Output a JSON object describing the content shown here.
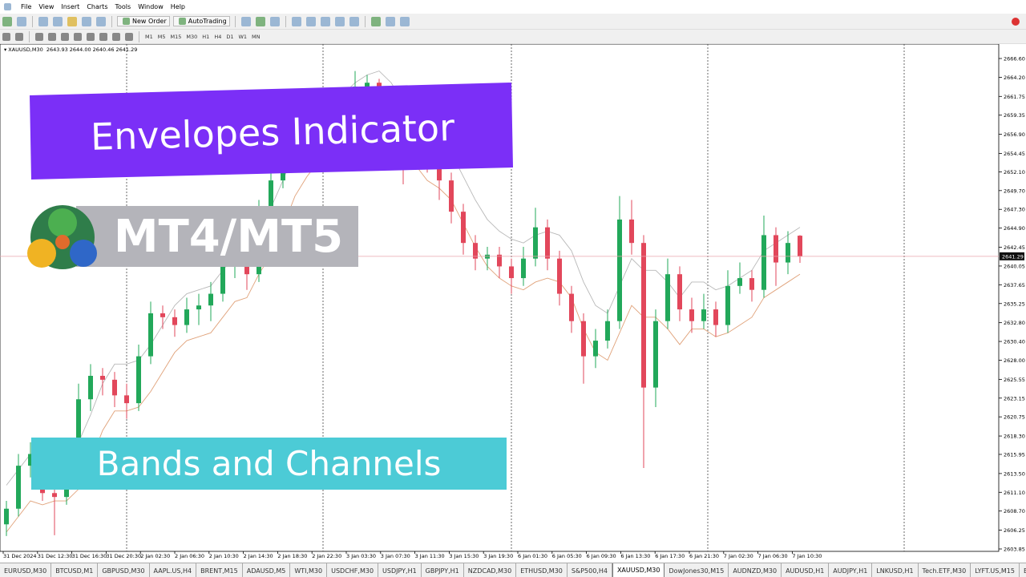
{
  "menu": [
    "File",
    "View",
    "Insert",
    "Charts",
    "Tools",
    "Window",
    "Help"
  ],
  "toolbar": {
    "new_order": "New Order",
    "autotrading": "AutoTrading",
    "timeframes": [
      "M1",
      "M5",
      "M15",
      "M30",
      "H1",
      "H4",
      "D1",
      "W1",
      "MN"
    ]
  },
  "chart": {
    "type": "candlestick",
    "symbol": "XAUUSD,M30",
    "ohlc_text": [
      "2643.93",
      "2644.00",
      "2640.46",
      "2641.29"
    ],
    "candles": [
      [
        2607.0,
        2610.0,
        2605.5,
        2609.0
      ],
      [
        2609.0,
        2616.0,
        2608.0,
        2614.5
      ],
      [
        2614.5,
        2617.5,
        2613.0,
        2616.0
      ],
      [
        2616.0,
        2617.0,
        2610.0,
        2611.0
      ],
      [
        2611.0,
        2612.5,
        2605.6,
        2610.5
      ],
      [
        2610.5,
        2615.5,
        2609.5,
        2614.0
      ],
      [
        2614.0,
        2625.0,
        2613.0,
        2623.0
      ],
      [
        2623.0,
        2627.5,
        2621.5,
        2626.0
      ],
      [
        2626.0,
        2627.0,
        2623.5,
        2625.5
      ],
      [
        2625.5,
        2626.5,
        2622.0,
        2623.5
      ],
      [
        2623.5,
        2625.0,
        2620.5,
        2622.5
      ],
      [
        2622.5,
        2630.0,
        2621.5,
        2628.5
      ],
      [
        2628.5,
        2635.5,
        2627.5,
        2634.0
      ],
      [
        2634.0,
        2635.0,
        2632.0,
        2633.5
      ],
      [
        2633.5,
        2634.5,
        2631.0,
        2632.5
      ],
      [
        2632.5,
        2636.0,
        2631.5,
        2634.5
      ],
      [
        2634.5,
        2636.5,
        2632.5,
        2635.0
      ],
      [
        2635.0,
        2638.0,
        2633.0,
        2636.5
      ],
      [
        2636.5,
        2641.5,
        2635.5,
        2640.0
      ],
      [
        2640.0,
        2643.0,
        2638.5,
        2641.5
      ],
      [
        2641.5,
        2642.5,
        2637.0,
        2639.0
      ],
      [
        2639.0,
        2648.5,
        2638.0,
        2647.0
      ],
      [
        2647.0,
        2652.5,
        2646.0,
        2651.0
      ],
      [
        2651.0,
        2655.5,
        2650.0,
        2654.0
      ],
      [
        2654.0,
        2657.5,
        2653.0,
        2656.0
      ],
      [
        2656.0,
        2658.5,
        2654.5,
        2657.0
      ],
      [
        2657.0,
        2660.5,
        2656.0,
        2659.0
      ],
      [
        2659.0,
        2660.0,
        2657.0,
        2658.5
      ],
      [
        2658.5,
        2662.5,
        2657.5,
        2661.0
      ],
      [
        2661.0,
        2665.0,
        2660.0,
        2663.0
      ],
      [
        2663.0,
        2664.5,
        2661.5,
        2663.5
      ],
      [
        2663.5,
        2664.0,
        2659.0,
        2660.0
      ],
      [
        2660.0,
        2661.0,
        2654.0,
        2655.0
      ],
      [
        2655.0,
        2656.0,
        2650.5,
        2653.5
      ],
      [
        2653.5,
        2656.0,
        2652.5,
        2654.5
      ],
      [
        2654.5,
        2655.5,
        2652.0,
        2653.0
      ],
      [
        2653.0,
        2654.0,
        2648.5,
        2651.0
      ],
      [
        2651.0,
        2652.0,
        2645.5,
        2647.0
      ],
      [
        2647.0,
        2648.0,
        2641.5,
        2643.0
      ],
      [
        2643.0,
        2644.0,
        2639.5,
        2641.0
      ],
      [
        2641.0,
        2642.5,
        2639.5,
        2641.5
      ],
      [
        2641.5,
        2642.5,
        2638.5,
        2640.0
      ],
      [
        2640.0,
        2641.0,
        2636.5,
        2638.5
      ],
      [
        2638.5,
        2642.5,
        2637.5,
        2641.0
      ],
      [
        2641.0,
        2647.5,
        2640.0,
        2645.0
      ],
      [
        2645.0,
        2646.0,
        2639.5,
        2641.0
      ],
      [
        2641.0,
        2642.0,
        2635.0,
        2636.5
      ],
      [
        2636.5,
        2637.5,
        2631.5,
        2633.0
      ],
      [
        2633.0,
        2634.0,
        2625.0,
        2628.5
      ],
      [
        2628.5,
        2632.0,
        2627.0,
        2630.5
      ],
      [
        2630.5,
        2634.5,
        2629.5,
        2633.0
      ],
      [
        2633.0,
        2649.0,
        2632.0,
        2646.0
      ],
      [
        2646.0,
        2648.5,
        2641.5,
        2643.0
      ],
      [
        2643.0,
        2644.0,
        2614.2,
        2624.5
      ],
      [
        2624.5,
        2634.5,
        2622.0,
        2633.0
      ],
      [
        2633.0,
        2641.0,
        2632.0,
        2639.0
      ],
      [
        2639.0,
        2640.0,
        2633.0,
        2634.5
      ],
      [
        2634.5,
        2636.0,
        2631.5,
        2633.0
      ],
      [
        2633.0,
        2636.5,
        2632.0,
        2634.5
      ],
      [
        2634.5,
        2635.5,
        2631.0,
        2632.5
      ],
      [
        2632.5,
        2639.5,
        2631.5,
        2637.5
      ],
      [
        2637.5,
        2640.5,
        2636.5,
        2638.5
      ],
      [
        2638.5,
        2639.5,
        2635.5,
        2637.0
      ],
      [
        2637.0,
        2646.5,
        2636.0,
        2644.0
      ],
      [
        2644.0,
        2645.0,
        2637.5,
        2640.5
      ],
      [
        2640.5,
        2644.5,
        2639.0,
        2643.0
      ],
      [
        2643.93,
        2644.0,
        2640.46,
        2641.29
      ]
    ],
    "envelope_upper": [
      2612,
      2614,
      2616,
      2615.5,
      2616,
      2616,
      2617.5,
      2621,
      2625,
      2627.5,
      2627.5,
      2628,
      2630,
      2632.5,
      2635,
      2636.5,
      2637,
      2637.5,
      2639.5,
      2641.5,
      2642,
      2645,
      2647.5,
      2651,
      2655,
      2657.5,
      2659.5,
      2660.5,
      2662,
      2663.5,
      2664.5,
      2665,
      2663.5,
      2661,
      2659,
      2657,
      2656,
      2654.5,
      2651.5,
      2648.5,
      2646,
      2644.5,
      2643.5,
      2643,
      2644,
      2644.5,
      2644,
      2642,
      2638,
      2635,
      2634,
      2637.5,
      2641,
      2639.5,
      2639.5,
      2638,
      2636,
      2638,
      2638,
      2637,
      2637.5,
      2638.5,
      2639.5,
      2642,
      2643,
      2644,
      2645
    ],
    "envelope_lower": [
      2606,
      2608,
      2610,
      2609.5,
      2610,
      2610,
      2611.5,
      2615,
      2619,
      2621.5,
      2621.5,
      2622,
      2624,
      2626.5,
      2629,
      2630.5,
      2631,
      2631.5,
      2633.5,
      2635.5,
      2636,
      2639,
      2641.5,
      2645,
      2649,
      2651.5,
      2653.5,
      2654.5,
      2656,
      2657.5,
      2658.5,
      2659,
      2657.5,
      2655,
      2653,
      2651,
      2650,
      2648.5,
      2645.5,
      2642.5,
      2640,
      2638.5,
      2637.5,
      2637,
      2638,
      2638.5,
      2638,
      2636,
      2632,
      2629,
      2628,
      2631.5,
      2635,
      2633.5,
      2633.5,
      2632,
      2630,
      2632,
      2632,
      2631,
      2631.5,
      2632.5,
      2633.5,
      2636,
      2637,
      2638,
      2639
    ],
    "yticks": [
      {
        "value": 2666.6,
        "label": "2666.60"
      },
      {
        "value": 2664.2,
        "label": "2664.20"
      },
      2661.75,
      2659.35,
      {
        "value": 2656.9,
        "label": "2656.90"
      },
      2654.45,
      {
        "value": 2652.1,
        "label": "2652.10"
      },
      {
        "value": 2649.7,
        "label": "2649.70"
      },
      {
        "value": 2647.3,
        "label": "2647.30"
      },
      {
        "value": 2644.9,
        "label": "2644.90"
      },
      2642.45,
      2640.05,
      2637.65,
      2635.25,
      {
        "value": 2632.8,
        "label": "2632.80"
      },
      {
        "value": 2630.4,
        "label": "2630.40"
      },
      {
        "value": 2628,
        "label": "2628.00"
      },
      2625.55,
      2623.15,
      2620.75,
      {
        "value": 2618.3,
        "label": "2618.30"
      },
      2615.95,
      {
        "value": 2613.5,
        "label": "2613.50"
      },
      {
        "value": 2611.1,
        "label": "2611.10"
      },
      {
        "value": 2608.7,
        "label": "2608.70"
      },
      2606.25,
      2603.85
    ],
    "x_labels": [
      "31 Dec 2024",
      "31 Dec 12:30",
      "31 Dec 16:30",
      "31 Dec 20:30",
      "2 Jan 02:30",
      "2 Jan 06:30",
      "2 Jan 10:30",
      "2 Jan 14:30",
      "2 Jan 18:30",
      "2 Jan 22:30",
      "3 Jan 03:30",
      "3 Jan 07:30",
      "3 Jan 11:30",
      "3 Jan 15:30",
      "3 Jan 19:30",
      "6 Jan 01:30",
      "6 Jan 05:30",
      "6 Jan 09:30",
      "6 Jan 13:30",
      "6 Jan 17:30",
      "6 Jan 21:30",
      "7 Jan 02:30",
      "7 Jan 06:30",
      "7 Jan 10:30"
    ]
  },
  "banners": {
    "title": "Envelopes Indicator",
    "platform": "MT4/MT5",
    "subtitle": "Bands and Channels"
  },
  "tabs": [
    "EURUSD,M30",
    "BTCUSD,M1",
    "GBPUSD,M30",
    "AAPL.US,H4",
    "BRENT,M15",
    "ADAUSD,M5",
    "WTI,M30",
    "USDCHF,M30",
    "USDJPY,H1",
    "GBPJPY,H1",
    "NZDCAD,M30",
    "ETHUSD,M30",
    "S&P500,H4",
    "XAUUSD,M30",
    "DowJones30,M15",
    "AUDNZD,M30",
    "AUDUSD,H1",
    "AUDJPY,H1",
    "LNKUSD,H1",
    "Tech.ETF,M30",
    "LYFT.US,M15",
    "E"
  ],
  "active_tab": 13
}
